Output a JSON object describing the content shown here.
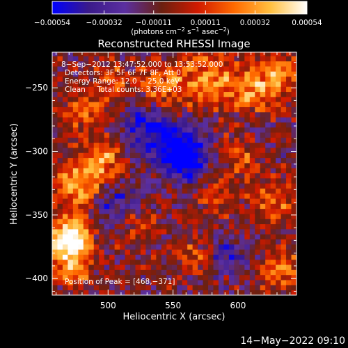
{
  "chart_data": {
    "type": "heatmap",
    "title": "Reconstructed RHESSI Image",
    "xlabel": "Heliocentric X (arcsec)",
    "ylabel": "Heliocentric Y (arcsec)",
    "xlim": [
      457,
      645
    ],
    "ylim": [
      -413,
      -222
    ],
    "x_ticks": [
      500,
      550,
      600
    ],
    "y_ticks": [
      -250,
      -300,
      -350,
      -400
    ],
    "x_tick_labels": [
      "500",
      "550",
      "600"
    ],
    "y_tick_labels": [
      "−250",
      "−300",
      "−350",
      "−400"
    ],
    "colorbar": {
      "ticks": [
        -0.00054,
        -0.00032,
        -0.00011,
        0.00011,
        0.00032,
        0.00054
      ],
      "tick_labels": [
        "−0.00054",
        "−0.00032",
        "−0.00011",
        "0.00011",
        "0.00032",
        "0.00054"
      ],
      "range": [
        -0.00054,
        0.00054
      ],
      "colors": [
        "#0000ff",
        "#3a1a8a",
        "#5b2fa0",
        "#6a2010",
        "#d11a00",
        "#ff6a00",
        "#ffc040",
        "#ffffff"
      ]
    },
    "annotations": [
      "8−Sep−2012 13:47:52.000 to 13:53:52.000",
      "Detectors: 3F 5F 6F 7F 8F, Att 0",
      "Energy Range: 12.0 − 25.0 keV",
      "Clean     Total counts: 3.36E+03"
    ],
    "peak_label": "Position of Peak = [468,−371]",
    "peak": [
      468,
      -371
    ]
  },
  "footer_timestamp": "14−May−2022 09:10"
}
